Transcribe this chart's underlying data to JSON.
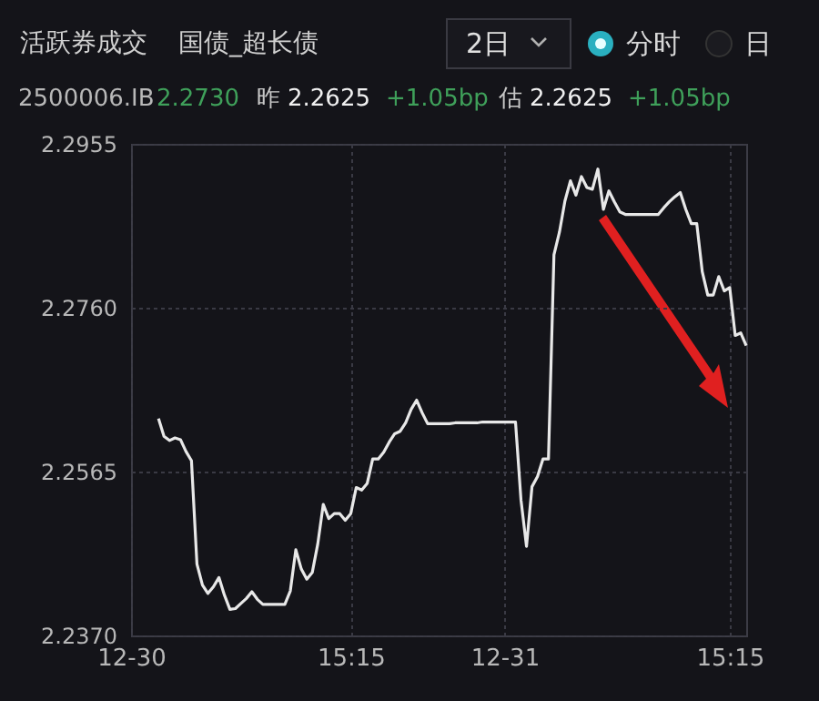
{
  "chart_data": {
    "type": "line",
    "title": "活跃券成交",
    "subtitle": "国债_超长债",
    "annotations": [
      "2日",
      "分时",
      "日",
      "2500006.IB",
      "2.2730",
      "昨",
      "2.2625",
      "+1.05bp",
      "估",
      "2.2625",
      "+1.05bp"
    ],
    "categories": [
      "12-30",
      null,
      null,
      null,
      null,
      null,
      null,
      null,
      null,
      null,
      null,
      null,
      null,
      null,
      null,
      null,
      null,
      null,
      null,
      null,
      null,
      null,
      null,
      null,
      null,
      null,
      null,
      null,
      null,
      null,
      null,
      null,
      null,
      null,
      null,
      null,
      null,
      null,
      null,
      null,
      "15:15",
      null,
      null,
      null,
      null,
      null,
      null,
      null,
      null,
      null,
      null,
      null,
      null,
      null,
      null,
      null,
      null,
      null,
      null,
      null,
      null,
      null,
      null,
      null,
      null,
      null,
      null,
      null,
      "12-31",
      null,
      null,
      null,
      null,
      null,
      null,
      null,
      null,
      null,
      null,
      null,
      null,
      null,
      null,
      null,
      null,
      null,
      null,
      null,
      null,
      null,
      null,
      null,
      null,
      null,
      null,
      null,
      null,
      null,
      null,
      null,
      null,
      null,
      null,
      null,
      null,
      null,
      null,
      null,
      null,
      "15:15",
      null,
      null,
      null
    ],
    "series": [
      {
        "color": "#e8e8e8",
        "values": [
          null,
          null,
          null,
          null,
          null,
          2.2628,
          2.2607,
          2.2602,
          2.2605,
          2.2603,
          2.2589,
          2.2578,
          2.2455,
          2.243,
          2.242,
          2.2428,
          2.2439,
          2.2418,
          2.2401,
          2.2402,
          2.2408,
          2.2414,
          2.2422,
          2.2413,
          2.2407,
          2.2407,
          2.2407,
          2.2407,
          2.2407,
          2.2423,
          2.2472,
          2.2449,
          2.2437,
          2.2445,
          2.2479,
          2.2526,
          2.2509,
          2.2515,
          2.2515,
          2.2507,
          2.2515,
          2.2546,
          2.2543,
          2.2551,
          2.258,
          2.258,
          2.2588,
          2.26,
          2.261,
          2.2613,
          2.2623,
          2.2639,
          2.265,
          2.2635,
          2.2622,
          2.2622,
          2.2622,
          2.2622,
          2.2622,
          2.2623,
          2.2623,
          2.2623,
          2.2623,
          2.2623,
          2.2624,
          2.2624,
          2.2624,
          2.2624,
          2.2624,
          2.2624,
          2.2624,
          2.2531,
          2.2476,
          2.2547,
          2.2559,
          2.258,
          2.258,
          2.2823,
          2.285,
          2.2887,
          2.2911,
          2.2894,
          2.2916,
          2.2903,
          2.2901,
          2.2925,
          2.2877,
          2.2899,
          2.2886,
          2.2874,
          2.2871,
          2.2871,
          2.2871,
          2.2871,
          2.2871,
          2.2871,
          2.2871,
          2.2879,
          2.2886,
          2.2892,
          2.2897,
          2.2877,
          2.286,
          2.286,
          2.2803,
          2.2775,
          2.2775,
          2.2797,
          2.278,
          2.2784,
          2.2727,
          2.273,
          2.2715
        ]
      }
    ],
    "ylim": [
      2.237,
      2.2955
    ],
    "yticks": [
      {
        "value": 2.237,
        "label": "2.2370"
      },
      {
        "value": 2.2565,
        "label": "2.2565"
      },
      {
        "value": 2.276,
        "label": "2.2760"
      },
      {
        "value": 2.2955,
        "label": "2.2955"
      }
    ],
    "grid": true
  }
}
